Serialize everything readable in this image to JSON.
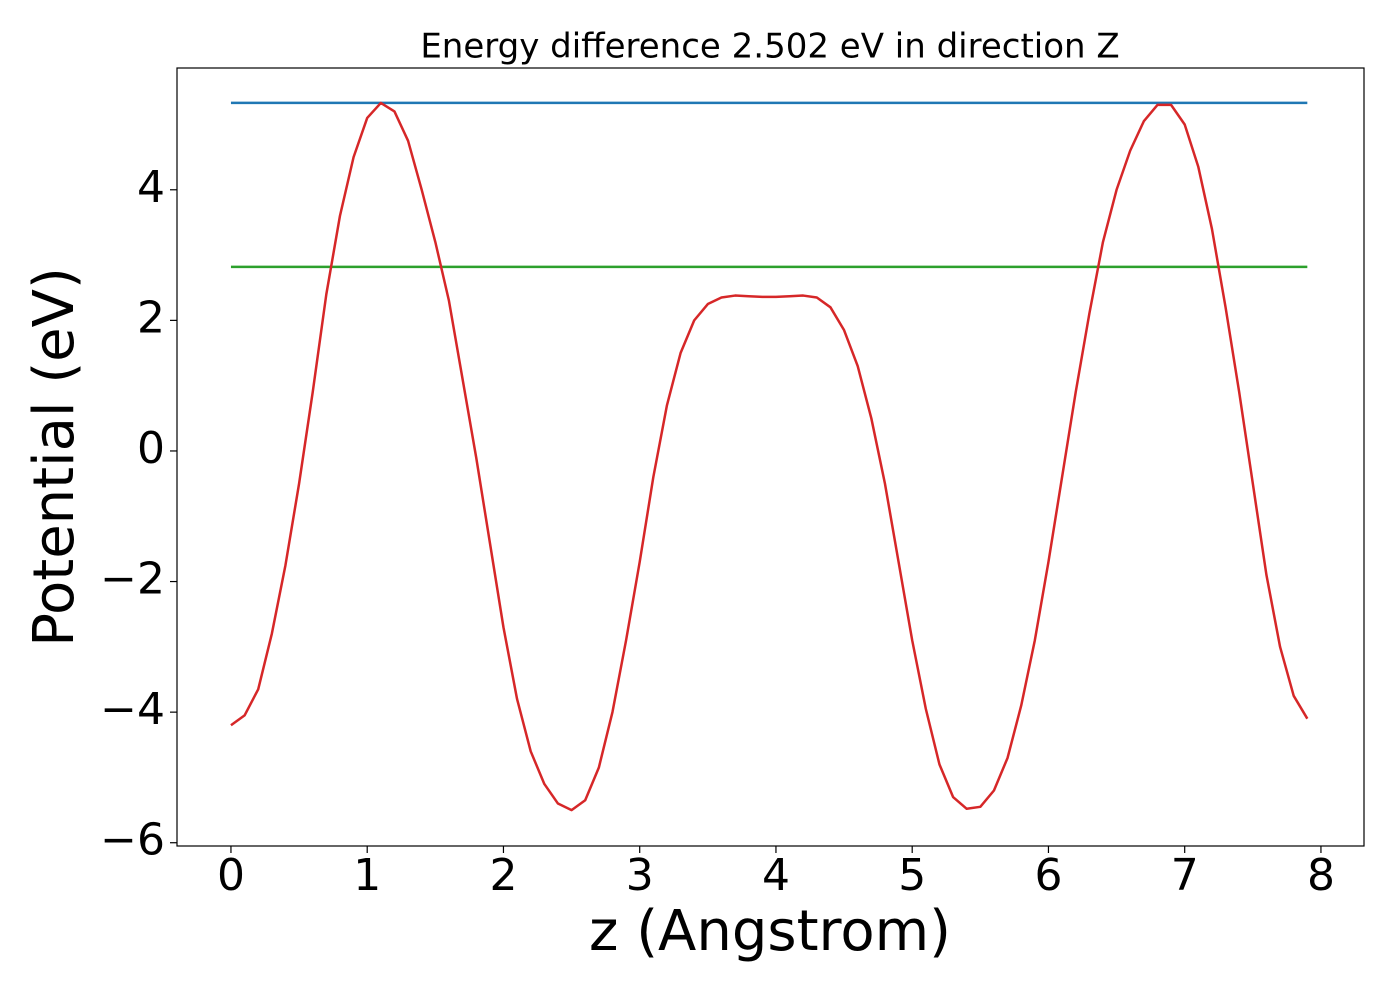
{
  "chart_data": {
    "type": "line",
    "title": "Energy difference 2.502 eV in direction Z",
    "xlabel": "z (Angstrom)",
    "ylabel": "Potential (eV)",
    "xlim": [
      -0.396,
      8.316
    ],
    "ylim": [
      -6.05,
      5.865
    ],
    "xticks": [
      0,
      1,
      2,
      3,
      4,
      5,
      6,
      7,
      8
    ],
    "yticks": [
      {
        "value": -6,
        "label": "−6"
      },
      {
        "value": -4,
        "label": "−4"
      },
      {
        "value": -2,
        "label": "−2"
      },
      0,
      2,
      4
    ],
    "series": [
      {
        "color": "#1f77b4",
        "x": [
          0,
          7.9
        ],
        "values": [
          5.33,
          5.33
        ]
      },
      {
        "color": "#2ca02c",
        "x": [
          0,
          7.9
        ],
        "values": [
          2.82,
          2.82
        ]
      },
      {
        "color": "#d62728",
        "x": [
          0,
          0.1,
          0.2,
          0.3,
          0.4,
          0.5,
          0.6,
          0.7,
          0.8,
          0.9,
          1.0,
          1.1,
          1.2,
          1.3,
          1.4,
          1.5,
          1.6,
          1.7,
          1.8,
          1.9,
          2.0,
          2.1,
          2.2,
          2.3,
          2.4,
          2.5,
          2.6,
          2.7,
          2.8,
          2.9,
          3.0,
          3.1,
          3.2,
          3.3,
          3.4,
          3.5,
          3.6,
          3.7,
          3.8,
          3.9,
          4.0,
          4.1,
          4.2,
          4.3,
          4.4,
          4.5,
          4.6,
          4.7,
          4.8,
          4.9,
          5.0,
          5.1,
          5.2,
          5.3,
          5.4,
          5.5,
          5.6,
          5.7,
          5.8,
          5.9,
          6.0,
          6.1,
          6.2,
          6.3,
          6.4,
          6.5,
          6.6,
          6.7,
          6.8,
          6.9,
          7.0,
          7.1,
          7.2,
          7.3,
          7.4,
          7.5,
          7.6,
          7.7,
          7.8,
          7.9
        ],
        "values": [
          -4.2,
          -4.05,
          -3.65,
          -2.8,
          -1.75,
          -0.5,
          0.9,
          2.4,
          3.6,
          4.5,
          5.1,
          5.33,
          5.2,
          4.75,
          4.0,
          3.2,
          2.3,
          1.1,
          -0.1,
          -1.4,
          -2.7,
          -3.8,
          -4.6,
          -5.1,
          -5.4,
          -5.5,
          -5.35,
          -4.85,
          -4.0,
          -2.9,
          -1.7,
          -0.4,
          0.7,
          1.5,
          2.0,
          2.25,
          2.35,
          2.38,
          2.37,
          2.36,
          2.36,
          2.37,
          2.38,
          2.35,
          2.2,
          1.85,
          1.3,
          0.5,
          -0.5,
          -1.7,
          -2.9,
          -3.95,
          -4.8,
          -5.3,
          -5.48,
          -5.45,
          -5.2,
          -4.7,
          -3.9,
          -2.9,
          -1.7,
          -0.4,
          0.9,
          2.1,
          3.2,
          4.0,
          4.6,
          5.05,
          5.3,
          5.3,
          5.0,
          4.35,
          3.4,
          2.2,
          0.9,
          -0.5,
          -1.9,
          -3.0,
          -3.75,
          -4.1
        ]
      }
    ]
  }
}
